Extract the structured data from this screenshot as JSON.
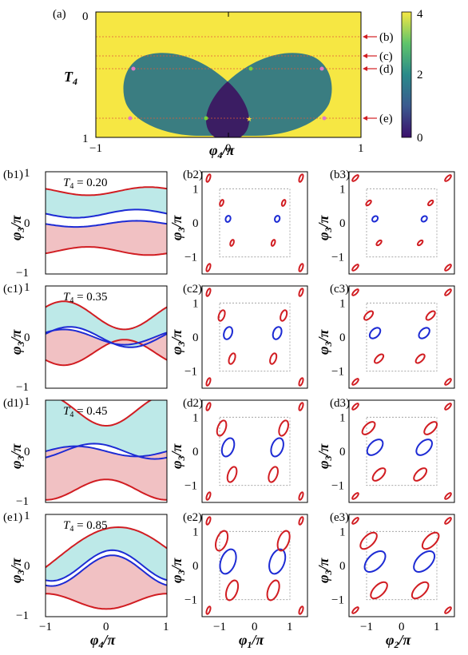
{
  "colors": {
    "yellow": "#f6e743",
    "teal": "#3a7d81",
    "dark": "#3b1d63",
    "red": "#d11d22",
    "blue": "#1d2bd4",
    "cyan": "#bde9e8",
    "pink": "#f1c1c3",
    "green": "#7ad03a",
    "pinkmark": "#e079c8",
    "orange": "#f0a55e",
    "gold": "#f6d93a"
  },
  "panel_a": {
    "label": "(a)",
    "ylabel": "T",
    "ylabel_sub": "4",
    "xlabel": "φ",
    "xlabel_sub": "4",
    "xlabel_tail": "/π",
    "xticks": [
      "−1",
      "0",
      "1"
    ],
    "yticks": [
      "0",
      "1"
    ],
    "colorbar_ticks": [
      "4",
      "2",
      "0"
    ],
    "arrows": [
      "(b)",
      "(c)",
      "(d)",
      "(e)"
    ]
  },
  "rows": [
    {
      "left_label": "(b1)",
      "mid_label": "(b2)",
      "right_label": "(b3)",
      "t_text": "T",
      "t_sub": "4",
      "t_value": "= 0.20"
    },
    {
      "left_label": "(c1)",
      "mid_label": "(c2)",
      "right_label": "(c3)",
      "t_text": "T",
      "t_sub": "4",
      "t_value": "= 0.35"
    },
    {
      "left_label": "(d1)",
      "mid_label": "(d2)",
      "right_label": "(d3)",
      "t_text": "T",
      "t_sub": "4",
      "t_value": "= 0.45"
    },
    {
      "left_label": "(e1)",
      "mid_label": "(e2)",
      "right_label": "(e3)",
      "t_text": "T",
      "t_sub": "4",
      "t_value": "= 0.85"
    }
  ],
  "small_axes": {
    "ylabel": "φ",
    "ylabel_sub": "3",
    "ylabel_tail": "/π",
    "left_xlabel": "φ",
    "left_xlabel_sub": "4",
    "left_xlabel_tail": "/π",
    "mid_xlabel": "φ",
    "mid_xlabel_sub": "1",
    "mid_xlabel_tail": "/π",
    "right_xlabel": "φ",
    "right_xlabel_sub": "2",
    "right_xlabel_tail": "/π",
    "left_yticks": [
      "1",
      "0",
      "−1"
    ],
    "left_xticks": [
      "−1",
      "0",
      "1"
    ],
    "mid_yticks": [
      "1",
      "0",
      "−1"
    ],
    "mid_xticks": [
      "−1",
      "0",
      "1"
    ]
  },
  "chart_data": {
    "type": "heatmap",
    "title": "",
    "x_range": [
      -1,
      1
    ],
    "y_range": [
      0,
      1
    ],
    "colorbar_range": [
      0,
      4
    ],
    "row_T4": [
      0.2,
      0.35,
      0.45,
      0.85
    ],
    "left_x_range": [
      -1,
      1
    ],
    "left_y_range": [
      -1,
      1
    ],
    "torus_range": [
      -1.5,
      1.5
    ]
  }
}
